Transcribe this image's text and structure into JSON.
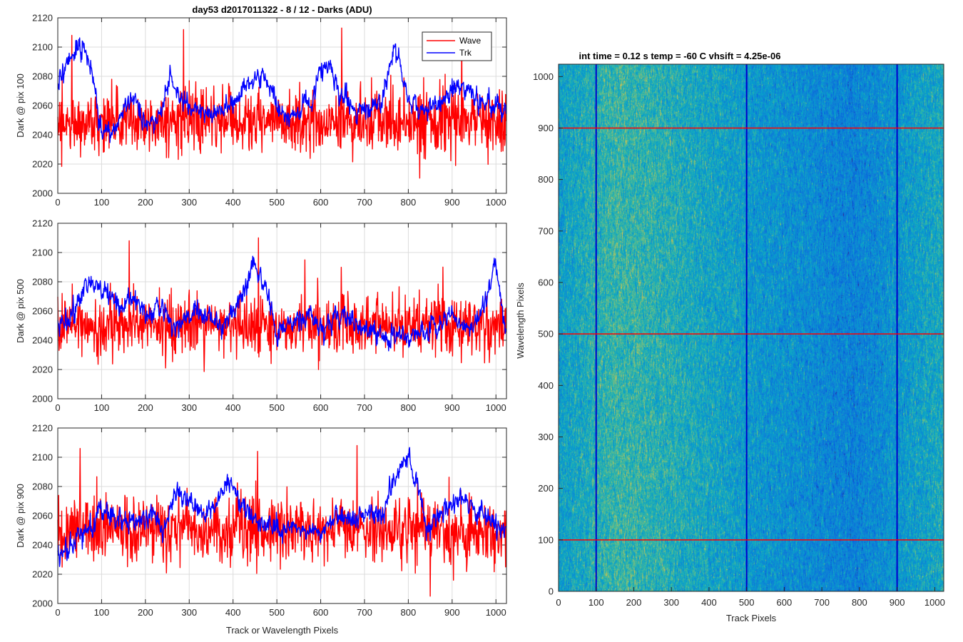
{
  "chart_data": [
    {
      "type": "line",
      "title": "day53 d2017011322 - 8 / 12 - Darks (ADU)",
      "xlabel": "",
      "ylabel": "Dark @ pix 100",
      "xlim": [
        0,
        1024
      ],
      "ylim": [
        2000,
        2120
      ],
      "xticks": [
        "0",
        "100",
        "200",
        "300",
        "400",
        "500",
        "600",
        "700",
        "800",
        "900",
        "1000"
      ],
      "yticks": [
        "2000",
        "2020",
        "2040",
        "2060",
        "2080",
        "2100",
        "2120"
      ],
      "grid": true,
      "legend": {
        "placement": "top-right",
        "entries": [
          "Wave",
          "Trk"
        ]
      },
      "series": [
        {
          "name": "Wave",
          "color": "#ff0000",
          "mean": 2049,
          "noise": 10,
          "spikes": [
            2108,
            2112,
            2113,
            2107
          ]
        },
        {
          "name": "Trk",
          "color": "#0000ff",
          "profile": [
            [
              0,
              2075
            ],
            [
              15,
              2085
            ],
            [
              40,
              2098
            ],
            [
              60,
              2100
            ],
            [
              75,
              2090
            ],
            [
              95,
              2048
            ],
            [
              125,
              2040
            ],
            [
              150,
              2058
            ],
            [
              175,
              2068
            ],
            [
              200,
              2045
            ],
            [
              230,
              2052
            ],
            [
              255,
              2080
            ],
            [
              280,
              2065
            ],
            [
              310,
              2058
            ],
            [
              350,
              2055
            ],
            [
              400,
              2060
            ],
            [
              420,
              2070
            ],
            [
              470,
              2082
            ],
            [
              500,
              2060
            ],
            [
              520,
              2050
            ],
            [
              580,
              2060
            ],
            [
              600,
              2085
            ],
            [
              620,
              2088
            ],
            [
              640,
              2068
            ],
            [
              690,
              2055
            ],
            [
              735,
              2060
            ],
            [
              770,
              2102
            ],
            [
              800,
              2064
            ],
            [
              820,
              2058
            ],
            [
              870,
              2060
            ],
            [
              920,
              2075
            ],
            [
              960,
              2062
            ],
            [
              1000,
              2060
            ],
            [
              1024,
              2055
            ]
          ],
          "noise": 6
        }
      ]
    },
    {
      "type": "line",
      "xlabel": "",
      "ylabel": "Dark @ pix 500",
      "xlim": [
        0,
        1024
      ],
      "ylim": [
        2000,
        2120
      ],
      "xticks": [
        "0",
        "100",
        "200",
        "300",
        "400",
        "500",
        "600",
        "700",
        "800",
        "900",
        "1000"
      ],
      "yticks": [
        "2000",
        "2020",
        "2040",
        "2060",
        "2080",
        "2100",
        "2120"
      ],
      "grid": true,
      "series": [
        {
          "name": "Wave",
          "color": "#ff0000",
          "mean": 2050,
          "noise": 10,
          "spikes": [
            2108,
            2110,
            2095,
            2090
          ]
        },
        {
          "name": "Trk",
          "color": "#0000ff",
          "profile": [
            [
              0,
              2050
            ],
            [
              40,
              2060
            ],
            [
              70,
              2080
            ],
            [
              120,
              2072
            ],
            [
              140,
              2062
            ],
            [
              180,
              2068
            ],
            [
              200,
              2058
            ],
            [
              240,
              2062
            ],
            [
              260,
              2048
            ],
            [
              300,
              2056
            ],
            [
              330,
              2060
            ],
            [
              380,
              2050
            ],
            [
              420,
              2070
            ],
            [
              450,
              2092
            ],
            [
              475,
              2075
            ],
            [
              500,
              2045
            ],
            [
              560,
              2055
            ],
            [
              600,
              2050
            ],
            [
              650,
              2058
            ],
            [
              690,
              2050
            ],
            [
              730,
              2045
            ],
            [
              800,
              2042
            ],
            [
              870,
              2050
            ],
            [
              900,
              2060
            ],
            [
              940,
              2046
            ],
            [
              970,
              2060
            ],
            [
              1000,
              2092
            ],
            [
              1024,
              2038
            ]
          ],
          "noise": 6
        }
      ]
    },
    {
      "type": "line",
      "xlabel": "Track or Wavelength Pixels",
      "ylabel": "Dark @ pix 900",
      "xlim": [
        0,
        1024
      ],
      "ylim": [
        2000,
        2120
      ],
      "xticks": [
        "0",
        "100",
        "200",
        "300",
        "400",
        "500",
        "600",
        "700",
        "800",
        "900",
        "1000"
      ],
      "yticks": [
        "2000",
        "2020",
        "2040",
        "2060",
        "2080",
        "2100",
        "2120"
      ],
      "grid": true,
      "series": [
        {
          "name": "Wave",
          "color": "#ff0000",
          "mean": 2050,
          "noise": 11,
          "spikes": [
            2106,
            2104,
            2108,
            2005
          ]
        },
        {
          "name": "Trk",
          "color": "#0000ff",
          "profile": [
            [
              0,
              2032
            ],
            [
              30,
              2040
            ],
            [
              70,
              2050
            ],
            [
              100,
              2065
            ],
            [
              130,
              2058
            ],
            [
              170,
              2055
            ],
            [
              220,
              2062
            ],
            [
              240,
              2048
            ],
            [
              270,
              2078
            ],
            [
              300,
              2072
            ],
            [
              320,
              2062
            ],
            [
              360,
              2065
            ],
            [
              390,
              2085
            ],
            [
              410,
              2072
            ],
            [
              440,
              2060
            ],
            [
              470,
              2055
            ],
            [
              510,
              2050
            ],
            [
              560,
              2052
            ],
            [
              600,
              2048
            ],
            [
              640,
              2060
            ],
            [
              670,
              2058
            ],
            [
              700,
              2062
            ],
            [
              740,
              2060
            ],
            [
              760,
              2080
            ],
            [
              800,
              2098
            ],
            [
              830,
              2070
            ],
            [
              840,
              2050
            ],
            [
              880,
              2062
            ],
            [
              920,
              2072
            ],
            [
              960,
              2062
            ],
            [
              1000,
              2055
            ],
            [
              1024,
              2050
            ]
          ],
          "noise": 6
        }
      ]
    },
    {
      "type": "heatmap",
      "title": "int time = 0.12 s   temp = -60 C   vhsift = 4.25e-06",
      "xlabel": "Track Pixels",
      "ylabel": "Wavelength Pixels",
      "xlim": [
        0,
        1024
      ],
      "ylim": [
        0,
        1024
      ],
      "xticks": [
        "0",
        "100",
        "200",
        "300",
        "400",
        "500",
        "600",
        "700",
        "800",
        "900",
        "1000"
      ],
      "yticks": [
        "0",
        "100",
        "200",
        "300",
        "400",
        "500",
        "600",
        "700",
        "800",
        "900",
        "1000"
      ],
      "colormap": "parula",
      "vlines": {
        "x": [
          100,
          500,
          900
        ],
        "color": "#0000cc"
      },
      "hlines": {
        "y": [
          100,
          500,
          900
        ],
        "color": "#ff0000"
      },
      "column_profile": [
        [
          0,
          0.45
        ],
        [
          60,
          0.5
        ],
        [
          150,
          0.58
        ],
        [
          250,
          0.55
        ],
        [
          350,
          0.5
        ],
        [
          450,
          0.45
        ],
        [
          550,
          0.4
        ],
        [
          650,
          0.36
        ],
        [
          720,
          0.33
        ],
        [
          780,
          0.3
        ],
        [
          850,
          0.35
        ],
        [
          950,
          0.45
        ],
        [
          1024,
          0.5
        ]
      ]
    }
  ]
}
